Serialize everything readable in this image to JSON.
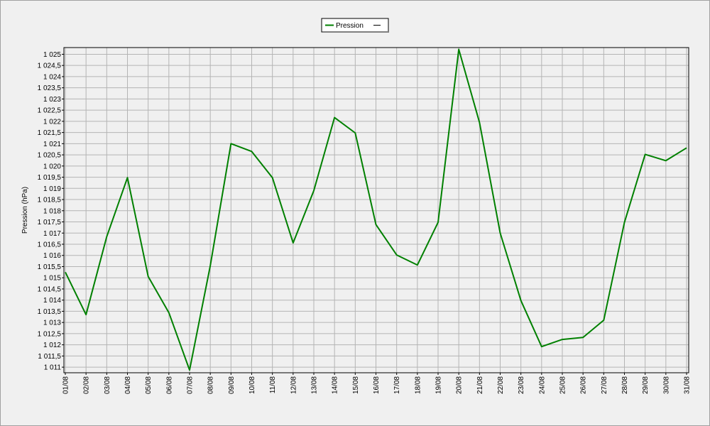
{
  "chart_data": {
    "type": "line",
    "y_label": "Pression (hPa)",
    "categories": [
      "01/08",
      "02/08",
      "03/08",
      "04/08",
      "05/08",
      "06/08",
      "07/08",
      "08/08",
      "09/08",
      "10/08",
      "11/08",
      "12/08",
      "13/08",
      "14/08",
      "15/08",
      "16/08",
      "17/08",
      "18/08",
      "19/08",
      "20/08",
      "21/08",
      "22/08",
      "23/08",
      "24/08",
      "25/08",
      "26/08",
      "27/08",
      "28/08",
      "29/08",
      "30/08",
      "31/08"
    ],
    "series": [
      {
        "name": "Pression",
        "color": "#008000",
        "values": [
          1015.25,
          1013.35,
          1016.84,
          1019.48,
          1015.06,
          1013.44,
          1010.87,
          1015.54,
          1021.0,
          1020.65,
          1019.48,
          1016.56,
          1018.9,
          1022.17,
          1021.48,
          1017.38,
          1016.02,
          1015.57,
          1017.48,
          1025.22,
          1021.95,
          1017.0,
          1013.98,
          1011.92,
          1012.24,
          1012.33,
          1013.1,
          1017.48,
          1020.52,
          1020.24,
          1020.81
        ]
      }
    ],
    "ylim": [
      1010.75,
      1025.3
    ],
    "yticks": [
      {
        "value": 1011,
        "label": "1 011"
      },
      {
        "value": 1011.5,
        "label": "1 011,5"
      },
      {
        "value": 1012,
        "label": "1 012"
      },
      {
        "value": 1012.5,
        "label": "1 012,5"
      },
      {
        "value": 1013,
        "label": "1 013"
      },
      {
        "value": 1013.5,
        "label": "1 013,5"
      },
      {
        "value": 1014,
        "label": "1 014"
      },
      {
        "value": 1014.5,
        "label": "1 014,5"
      },
      {
        "value": 1015,
        "label": "1 015"
      },
      {
        "value": 1015.5,
        "label": "1 015,5"
      },
      {
        "value": 1016,
        "label": "1 016"
      },
      {
        "value": 1016.5,
        "label": "1 016,5"
      },
      {
        "value": 1017,
        "label": "1 017"
      },
      {
        "value": 1017.5,
        "label": "1 017,5"
      },
      {
        "value": 1018,
        "label": "1 018"
      },
      {
        "value": 1018.5,
        "label": "1 018,5"
      },
      {
        "value": 1019,
        "label": "1 019"
      },
      {
        "value": 1019.5,
        "label": "1 019,5"
      },
      {
        "value": 1020,
        "label": "1 020"
      },
      {
        "value": 1020.5,
        "label": "1 020,5"
      },
      {
        "value": 1021,
        "label": "1 021"
      },
      {
        "value": 1021.5,
        "label": "1 021,5"
      },
      {
        "value": 1022,
        "label": "1 022"
      },
      {
        "value": 1022.5,
        "label": "1 022,5"
      },
      {
        "value": 1023,
        "label": "1 023"
      },
      {
        "value": 1023.5,
        "label": "1 023,5"
      },
      {
        "value": 1024,
        "label": "1 024"
      },
      {
        "value": 1024.5,
        "label": "1 024,5"
      },
      {
        "value": 1025,
        "label": "1 025"
      }
    ],
    "grid": true
  }
}
